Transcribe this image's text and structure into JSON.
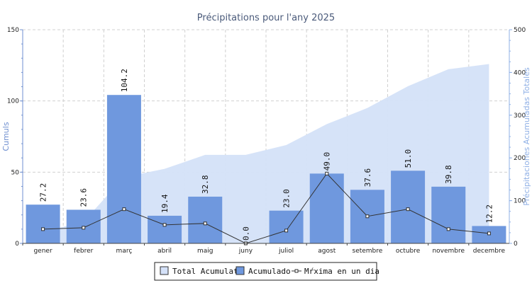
{
  "chart_data": {
    "type": "bar",
    "title": "Précipitations pour l'any 2025",
    "categories": [
      "gener",
      "febrer",
      "març",
      "abril",
      "maig",
      "juny",
      "juliol",
      "agost",
      "setembre",
      "octubre",
      "novembre",
      "decembre"
    ],
    "ylabel_left": "Cumuls",
    "ylabel_right": "Précipitaciones Acumuladas Totales",
    "ylim_left": [
      0,
      150
    ],
    "ylim_right": [
      0,
      500
    ],
    "yticks_left": [
      "0",
      "50",
      "100",
      "150"
    ],
    "yticks_right": [
      "0",
      "100",
      "200",
      "300",
      "400",
      "500"
    ],
    "grid": true,
    "legend_position": "bottom",
    "series": [
      {
        "name": "Total Acumulat",
        "type": "area",
        "axis": "right",
        "color": "#d4e1f8",
        "values": [
          27.2,
          50.8,
          155.0,
          174.4,
          207.2,
          207.2,
          230.2,
          279.2,
          316.8,
          367.8,
          407.6,
          419.8
        ]
      },
      {
        "name": "Acumulado",
        "type": "bar",
        "axis": "left",
        "color": "#6f98de",
        "values": [
          27.2,
          23.6,
          104.2,
          19.4,
          32.8,
          0.0,
          23.0,
          49.0,
          37.6,
          51.0,
          39.8,
          12.2
        ],
        "labels": [
          "27.2",
          "23.6",
          "104.2",
          "19.4",
          "32.8",
          "0.0",
          "23.0",
          "49.0",
          "37.6",
          "51.0",
          "39.8",
          "12.2"
        ]
      },
      {
        "name": "Mŕxima en un dia",
        "type": "line",
        "axis": "left",
        "color": "#333333",
        "values": [
          10,
          11,
          24,
          13,
          14,
          0,
          9,
          49,
          19,
          24,
          10,
          7
        ]
      }
    ]
  }
}
